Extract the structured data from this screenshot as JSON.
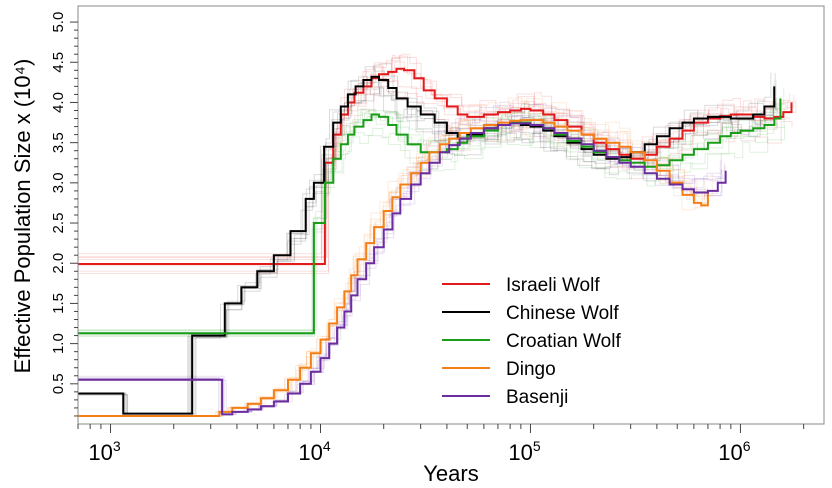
{
  "chart_data": {
    "type": "line",
    "line_shape": "step",
    "xlabel": "Years",
    "ylabel": "Effective Population Size x (10⁴)",
    "x_scale": "log",
    "xlim": [
      700,
      2500000
    ],
    "ylim": [
      0,
      5.2
    ],
    "x_ticks": [
      {
        "value": 1000,
        "base": "10",
        "exp": "3"
      },
      {
        "value": 10000,
        "base": "10",
        "exp": "4"
      },
      {
        "value": 100000,
        "base": "10",
        "exp": "5"
      },
      {
        "value": 1000000,
        "base": "10",
        "exp": "6"
      }
    ],
    "y_ticks": [
      "0.5",
      "1.0",
      "1.5",
      "2.0",
      "2.5",
      "3.0",
      "3.5",
      "4.0",
      "4.5",
      "5.0"
    ],
    "legend_position": "bottom-center",
    "series": [
      {
        "name": "Israeli Wolf",
        "color": "#e31a1c",
        "x": [
          700,
          10500,
          11500,
          12500,
          13500,
          14500,
          16000,
          17500,
          19000,
          21000,
          23000,
          25000,
          28000,
          31000,
          35000,
          40000,
          45000,
          50000,
          60000,
          70000,
          80000,
          90000,
          100000,
          115000,
          130000,
          150000,
          175000,
          200000,
          230000,
          265000,
          300000,
          350000,
          400000,
          460000,
          530000,
          600000,
          700000,
          800000,
          900000,
          1000000,
          1150000,
          1300000,
          1450000,
          1600000,
          1750000
        ],
        "y": [
          1.99,
          3.25,
          3.6,
          3.85,
          4.0,
          4.12,
          4.2,
          4.3,
          4.35,
          4.38,
          4.42,
          4.4,
          4.3,
          4.15,
          4.05,
          3.95,
          3.85,
          3.82,
          3.85,
          3.88,
          3.9,
          3.92,
          3.9,
          3.85,
          3.78,
          3.7,
          3.6,
          3.5,
          3.42,
          3.35,
          3.3,
          3.35,
          3.45,
          3.55,
          3.65,
          3.75,
          3.8,
          3.83,
          3.85,
          3.85,
          3.82,
          3.8,
          3.82,
          3.88,
          4.0
        ]
      },
      {
        "name": "Chinese Wolf",
        "color": "#000000",
        "x": [
          700,
          1150,
          2450,
          3500,
          4200,
          5000,
          6000,
          7200,
          8500,
          9300,
          10400,
          11500,
          12500,
          13500,
          14700,
          16000,
          17500,
          19000,
          21000,
          23000,
          26000,
          30000,
          35000,
          40000,
          45000,
          50000,
          60000,
          70000,
          80000,
          90000,
          100000,
          115000,
          130000,
          150000,
          175000,
          200000,
          230000,
          265000,
          300000,
          350000,
          400000,
          460000,
          530000,
          600000,
          700000,
          800000,
          900000,
          1000000,
          1150000,
          1300000,
          1450000
        ],
        "y": [
          0.38,
          0.13,
          1.1,
          1.5,
          1.7,
          1.9,
          2.1,
          2.4,
          2.8,
          3.0,
          3.45,
          3.75,
          3.95,
          4.1,
          4.2,
          4.28,
          4.32,
          4.28,
          4.18,
          4.05,
          3.95,
          3.85,
          3.75,
          3.62,
          3.55,
          3.6,
          3.68,
          3.72,
          3.75,
          3.72,
          3.7,
          3.65,
          3.58,
          3.5,
          3.42,
          3.35,
          3.3,
          3.32,
          3.38,
          3.48,
          3.58,
          3.68,
          3.75,
          3.8,
          3.82,
          3.82,
          3.8,
          3.8,
          3.85,
          3.95,
          4.2
        ]
      },
      {
        "name": "Croatian Wolf",
        "color": "#1a9e1a",
        "x": [
          700,
          9300,
          10500,
          11500,
          12500,
          13500,
          14500,
          16000,
          17500,
          19000,
          21000,
          23000,
          26000,
          30000,
          35000,
          40000,
          45000,
          50000,
          60000,
          70000,
          80000,
          90000,
          100000,
          115000,
          130000,
          150000,
          175000,
          200000,
          230000,
          265000,
          300000,
          350000,
          400000,
          460000,
          530000,
          600000,
          700000,
          800000,
          900000,
          1000000,
          1150000,
          1300000,
          1450000,
          1550000
        ],
        "y": [
          1.13,
          2.5,
          3.0,
          3.3,
          3.48,
          3.6,
          3.7,
          3.78,
          3.85,
          3.82,
          3.72,
          3.6,
          3.48,
          3.38,
          3.38,
          3.42,
          3.5,
          3.58,
          3.65,
          3.72,
          3.75,
          3.75,
          3.72,
          3.68,
          3.6,
          3.52,
          3.45,
          3.38,
          3.32,
          3.28,
          3.25,
          3.2,
          3.22,
          3.28,
          3.35,
          3.42,
          3.5,
          3.58,
          3.62,
          3.65,
          3.68,
          3.72,
          3.8,
          4.05
        ]
      },
      {
        "name": "Dingo",
        "color": "#f57f17",
        "x": [
          700,
          3300,
          3800,
          4500,
          5200,
          6000,
          7000,
          8000,
          9000,
          10000,
          11000,
          12000,
          13000,
          14000,
          15000,
          16500,
          18000,
          20000,
          22000,
          24000,
          27000,
          30000,
          33000,
          37000,
          41000,
          46000,
          52000,
          60000,
          70000,
          80000,
          90000,
          100000,
          115000,
          130000,
          150000,
          175000,
          200000,
          230000,
          265000,
          300000,
          350000,
          400000,
          460000,
          530000,
          600000,
          650000,
          700000
        ],
        "y": [
          0.1,
          0.15,
          0.2,
          0.25,
          0.32,
          0.42,
          0.55,
          0.7,
          0.88,
          1.05,
          1.25,
          1.45,
          1.65,
          1.85,
          2.05,
          2.25,
          2.45,
          2.65,
          2.82,
          2.98,
          3.12,
          3.25,
          3.38,
          3.48,
          3.55,
          3.62,
          3.68,
          3.72,
          3.75,
          3.77,
          3.78,
          3.78,
          3.75,
          3.7,
          3.65,
          3.6,
          3.55,
          3.5,
          3.45,
          3.38,
          3.28,
          3.15,
          3.0,
          2.85,
          2.75,
          2.72,
          2.9
        ]
      },
      {
        "name": "Basenji",
        "color": "#6a2c9e",
        "x": [
          700,
          3400,
          3800,
          4500,
          5200,
          6000,
          7000,
          8000,
          9000,
          10000,
          11000,
          12000,
          13000,
          14000,
          15000,
          16500,
          18000,
          20000,
          22000,
          24000,
          27000,
          30000,
          33000,
          37000,
          41000,
          46000,
          52000,
          60000,
          70000,
          80000,
          90000,
          100000,
          115000,
          130000,
          150000,
          175000,
          200000,
          230000,
          265000,
          300000,
          350000,
          400000,
          460000,
          530000,
          600000,
          700000,
          780000,
          850000
        ],
        "y": [
          0.55,
          0.12,
          0.15,
          0.18,
          0.22,
          0.28,
          0.38,
          0.5,
          0.65,
          0.82,
          1.0,
          1.2,
          1.4,
          1.6,
          1.8,
          2.0,
          2.2,
          2.42,
          2.62,
          2.8,
          2.98,
          3.12,
          3.25,
          3.38,
          3.47,
          3.55,
          3.62,
          3.68,
          3.72,
          3.74,
          3.74,
          3.72,
          3.68,
          3.62,
          3.55,
          3.48,
          3.4,
          3.32,
          3.25,
          3.2,
          3.12,
          3.05,
          2.98,
          2.92,
          2.88,
          2.9,
          3.0,
          3.15
        ]
      }
    ]
  }
}
